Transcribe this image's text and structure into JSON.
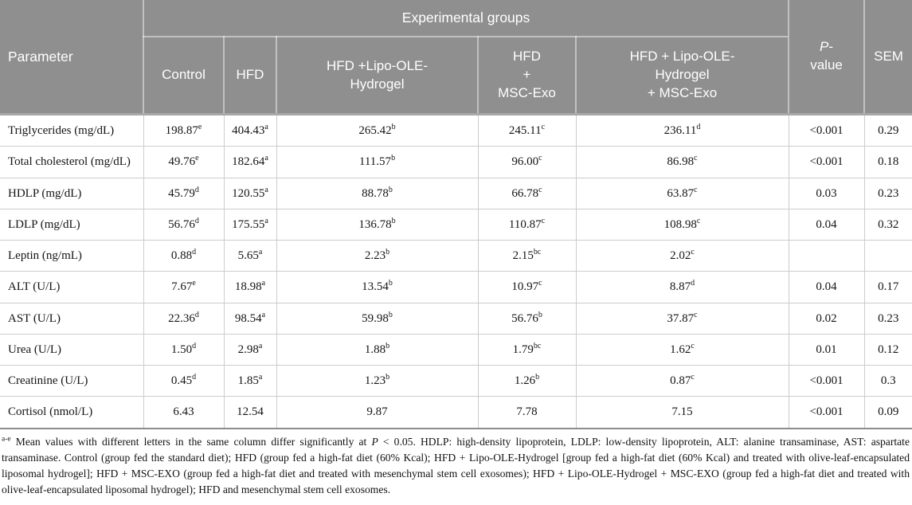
{
  "table": {
    "header": {
      "group_label": "Experimental groups",
      "parameter": "Parameter",
      "p_italic": "P",
      "p_rest": "-\nvalue",
      "sem": "SEM",
      "groups": [
        "Control",
        "HFD",
        "HFD +Lipo-OLE-\nHydrogel",
        "HFD\n+\nMSC-Exo",
        "HFD + Lipo-OLE-\nHydrogel\n+ MSC-Exo"
      ]
    },
    "rows": [
      {
        "parameter": "Triglycerides (mg/dL)",
        "cells": [
          {
            "v": "198.87",
            "sup": "e"
          },
          {
            "v": "404.43",
            "sup": "a"
          },
          {
            "v": "265.42",
            "sup": "b"
          },
          {
            "v": "245.11",
            "sup": "c"
          },
          {
            "v": "236.11",
            "sup": "d"
          }
        ],
        "p": "<0.001",
        "sem": "0.29"
      },
      {
        "parameter": "Total cholesterol (mg/dL)",
        "cells": [
          {
            "v": "49.76",
            "sup": "e"
          },
          {
            "v": "182.64",
            "sup": "a"
          },
          {
            "v": "111.57",
            "sup": "b"
          },
          {
            "v": "96.00",
            "sup": "c"
          },
          {
            "v": "86.98",
            "sup": "c"
          }
        ],
        "p": "<0.001",
        "sem": "0.18"
      },
      {
        "parameter": "HDLP (mg/dL)",
        "cells": [
          {
            "v": "45.79",
            "sup": "d"
          },
          {
            "v": "120.55",
            "sup": "a"
          },
          {
            "v": "88.78",
            "sup": "b"
          },
          {
            "v": "66.78",
            "sup": "c"
          },
          {
            "v": "63.87",
            "sup": "c"
          }
        ],
        "p": "0.03",
        "sem": "0.23"
      },
      {
        "parameter": "LDLP (mg/dL)",
        "cells": [
          {
            "v": "56.76",
            "sup": "d"
          },
          {
            "v": "175.55",
            "sup": "a"
          },
          {
            "v": "136.78",
            "sup": "b"
          },
          {
            "v": "110.87",
            "sup": "c"
          },
          {
            "v": "108.98",
            "sup": "c"
          }
        ],
        "p": "0.04",
        "sem": "0.32"
      },
      {
        "parameter": "Leptin (ng/mL)",
        "cells": [
          {
            "v": "0.88",
            "sup": "d"
          },
          {
            "v": "5.65",
            "sup": "a"
          },
          {
            "v": "2.23",
            "sup": "b"
          },
          {
            "v": "2.15",
            "sup": "bc"
          },
          {
            "v": "2.02",
            "sup": "c"
          }
        ],
        "p": "",
        "sem": ""
      },
      {
        "parameter": "ALT (U/L)",
        "cells": [
          {
            "v": "7.67",
            "sup": "e"
          },
          {
            "v": "18.98",
            "sup": "a"
          },
          {
            "v": "13.54",
            "sup": "b"
          },
          {
            "v": "10.97",
            "sup": "c"
          },
          {
            "v": "8.87",
            "sup": "d"
          }
        ],
        "p": "0.04",
        "sem": "0.17"
      },
      {
        "parameter": "AST (U/L)",
        "cells": [
          {
            "v": "22.36",
            "sup": "d"
          },
          {
            "v": "98.54",
            "sup": "a"
          },
          {
            "v": "59.98",
            "sup": "b"
          },
          {
            "v": "56.76",
            "sup": "b"
          },
          {
            "v": "37.87",
            "sup": "c"
          }
        ],
        "p": "0.02",
        "sem": "0.23"
      },
      {
        "parameter": "Urea (U/L)",
        "cells": [
          {
            "v": "1.50",
            "sup": "d"
          },
          {
            "v": "2.98",
            "sup": "a"
          },
          {
            "v": "1.88",
            "sup": "b"
          },
          {
            "v": "1.79",
            "sup": "bc"
          },
          {
            "v": "1.62",
            "sup": "c"
          }
        ],
        "p": "0.01",
        "sem": "0.12"
      },
      {
        "parameter": "Creatinine (U/L)",
        "cells": [
          {
            "v": "0.45",
            "sup": "d"
          },
          {
            "v": "1.85",
            "sup": "a"
          },
          {
            "v": "1.23",
            "sup": "b"
          },
          {
            "v": "1.26",
            "sup": "b"
          },
          {
            "v": "0.87",
            "sup": "c"
          }
        ],
        "p": "<0.001",
        "sem": "0.3"
      },
      {
        "parameter": "Cortisol (nmol/L)",
        "cells": [
          {
            "v": "6.43",
            "sup": ""
          },
          {
            "v": "12.54",
            "sup": ""
          },
          {
            "v": "9.87",
            "sup": ""
          },
          {
            "v": "7.78",
            "sup": ""
          },
          {
            "v": "7.15",
            "sup": ""
          }
        ],
        "p": "<0.001",
        "sem": "0.09"
      }
    ]
  },
  "footnote": {
    "sup": "a-e",
    "part1": " Mean values with different letters in the same column differ significantly at ",
    "italic": "P",
    "part2": " < 0.05. HDLP: high-density lipoprotein, LDLP: low-density lipoprotein, ALT: alanine transaminase, AST: aspartate transaminase. Control (group fed the standard diet); HFD (group fed a high-fat diet (60% Kcal); HFD + Lipo-OLE-Hydrogel [group fed a high-fat diet (60% Kcal) and treated with olive-leaf-encapsulated liposomal hydrogel]; HFD + MSC-EXO (group fed a high-fat diet and treated with mesenchymal stem cell exosomes); HFD + Lipo-OLE-Hydrogel + MSC-EXO (group fed a high-fat diet and treated with olive-leaf-encapsulated liposomal hydrogel); HFD and mesenchymal stem cell exosomes."
  },
  "colors": {
    "header_bg": "#8f8f8f",
    "header_text": "#ffffff",
    "body_text": "#141414",
    "row_border": "#cccccc"
  }
}
